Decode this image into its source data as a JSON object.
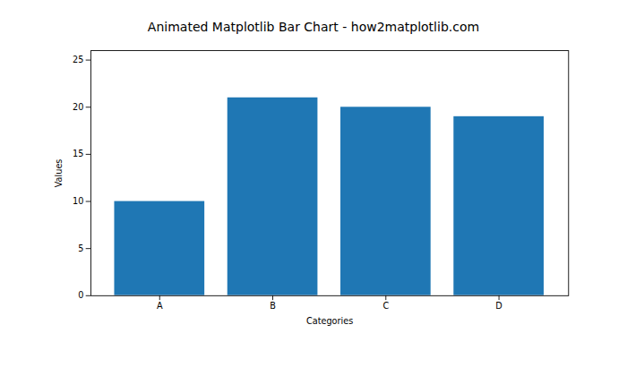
{
  "chart_data": {
    "type": "bar",
    "title": "Animated Matplotlib Bar Chart - how2matplotlib.com",
    "xlabel": "Categories",
    "ylabel": "Values",
    "categories": [
      "A",
      "B",
      "C",
      "D"
    ],
    "values": [
      10,
      21,
      20,
      19
    ],
    "color": "#1f77b4",
    "ylim": [
      0,
      26
    ],
    "yticks": [
      0,
      5,
      10,
      15,
      20,
      25
    ],
    "grid": false
  }
}
